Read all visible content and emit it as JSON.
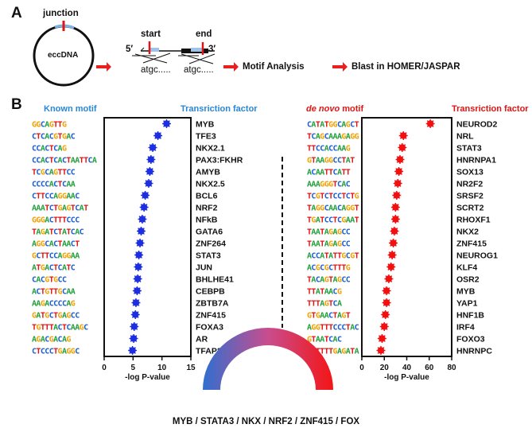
{
  "panels": {
    "a": "A",
    "b": "B"
  },
  "panel_a": {
    "circle_top_label": "junction",
    "circle_center_label": "eccDNA",
    "seq_start": "start",
    "seq_end": "end",
    "five_prime": "5′",
    "three_prime": "3′",
    "seq_left": "atgc.....",
    "seq_right": "atgc.....",
    "step1": "Motif Analysis",
    "step2": "Blast in HOMER/JASPAR"
  },
  "panel_b": {
    "known_header": "Known  motif",
    "known_tf_header": "Transriction factor",
    "denovo_header_italic": "de novo",
    "denovo_header_rest": " motif",
    "denovo_tf_header": "Transriction factor",
    "known_xlabel": "-log P-value",
    "denovo_xlabel": "-log P-value",
    "conclusion": "MYB / STATA3 / NKX / NRF2 / ZNF415 / FOX",
    "colors": {
      "known": "#1d2fe0",
      "denovo": "#f21010",
      "known_header": "#2a86d6",
      "denovo_header": "#e01515"
    }
  },
  "chart_data": [
    {
      "type": "scatter",
      "title": "Known motif",
      "xlabel": "-log P-value",
      "xlim": [
        0,
        15
      ],
      "xticks": [
        0,
        5,
        10,
        15
      ],
      "categories": [
        "MYB",
        "TFE3",
        "NKX2.1",
        "PAX3:FKHR",
        "AMYB",
        "NKX2.5",
        "BCL6",
        "NRF2",
        "NFkB",
        "GATA6",
        "ZNF264",
        "STAT3",
        "JUN",
        "BHLHE41",
        "CEBPB",
        "ZBTB7A",
        "ZNF415",
        "FOXA3",
        "AR",
        "TFAP2A"
      ],
      "motifs": [
        "GGCAGTTG",
        "CTCACGTGAC",
        "CCACTCAG",
        "CCACTCACTAATTCA",
        "TCGCAGTTCC",
        "CCCCACTCAA",
        "CTTCCAGGAAC",
        "AAATCTGAGTCAT",
        "GGGACTTTCCC",
        "TAGATCTATCAC",
        "AGGCACTAACT",
        "GCTTCCAGGAA",
        "ATGACTCATC",
        "CACGTGCC",
        "ACTGTTGCAA",
        "AAGACCCCAG",
        "GATGCTGAGCC",
        "TGTTTACTCAAGC",
        "AGACGACAG",
        "CTCCCTGAGGC"
      ],
      "values": [
        10.8,
        9.3,
        8.4,
        8.1,
        7.9,
        7.7,
        7.1,
        6.9,
        6.6,
        6.4,
        6.2,
        6.0,
        5.9,
        5.8,
        5.7,
        5.5,
        5.4,
        5.2,
        5.1,
        4.9
      ]
    },
    {
      "type": "scatter",
      "title": "de novo motif",
      "xlabel": "-log P-value",
      "xlim": [
        0,
        80
      ],
      "xticks": [
        0,
        20,
        40,
        60,
        80
      ],
      "categories": [
        "NEUROD2",
        "NRL",
        "STAT3",
        "HNRNPA1",
        "SOX13",
        "NR2F2",
        "SRSF2",
        "SCRT2",
        "RHOXF1",
        "NKX2",
        "ZNF415",
        "NEUROG1",
        "KLF4",
        "OSR2",
        "MYB",
        "YAP1",
        "HNF1B",
        "IRF4",
        "FOXO3",
        "HNRNPC"
      ],
      "motifs": [
        "CATATGGCAGCT",
        "TCAGCAAAGAGG",
        "TTCCACCAAG",
        "GTAAGGCCTAT",
        "ACAATTCATT",
        "AAAGGGTCAC",
        "TCGTCTCCTCTG",
        "TAGGCAACAGGT",
        "TGATCCTCGAAT",
        "TAATAGAGCC",
        "TAATAGAGCC",
        "ACCATATTGCGT",
        "ACGCGCTTTG",
        "TACAGTAGCC",
        "TTATAACG",
        "TTTAGTCA",
        "GTGAACTAGT",
        "AGGTTTCCCTAC",
        "GTAATCAC",
        "ATTTTTGAGATA"
      ],
      "values": [
        61,
        37,
        36,
        34,
        33,
        32,
        31,
        30,
        30,
        29,
        28,
        27,
        26,
        24,
        22,
        22,
        21,
        20,
        18,
        17
      ]
    }
  ]
}
